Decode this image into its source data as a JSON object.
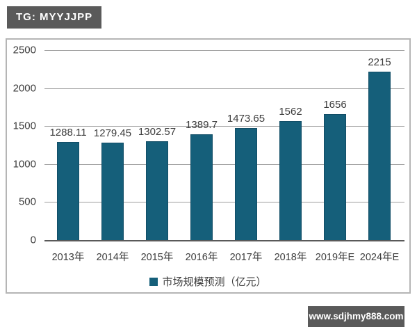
{
  "header": {
    "tg_badge": "TG: MYYJJPP"
  },
  "footer": {
    "site_badge": "www.sdjhmy888.com"
  },
  "colors": {
    "bar": "#155f7a",
    "bar_border": "#114d66",
    "grid": "#9e9e9e",
    "axis": "#595959",
    "frame_border": "#b5b5b5",
    "text": "#3d3d3d",
    "badge_bg": "#5a5a5a",
    "badge_text": "#ffffff"
  },
  "chart_data": {
    "type": "bar",
    "categories": [
      "2013年",
      "2014年",
      "2015年",
      "2016年",
      "2017年",
      "2018年",
      "2019年E",
      "2024年E"
    ],
    "values": [
      1288.11,
      1279.45,
      1302.57,
      1389.7,
      1473.65,
      1562,
      1656,
      2215
    ],
    "value_labels": [
      "1288.11",
      "1279.45",
      "1302.57",
      "1389.7",
      "1473.65",
      "1562",
      "1656",
      "2215"
    ],
    "title": "",
    "xlabel": "",
    "ylabel": "",
    "legend": "市场规模预测（亿元）",
    "legend_position": "bottom",
    "y_ticks": [
      0,
      500,
      1000,
      1500,
      2000,
      2500
    ],
    "ylim": [
      0,
      2500
    ],
    "grid": true
  }
}
